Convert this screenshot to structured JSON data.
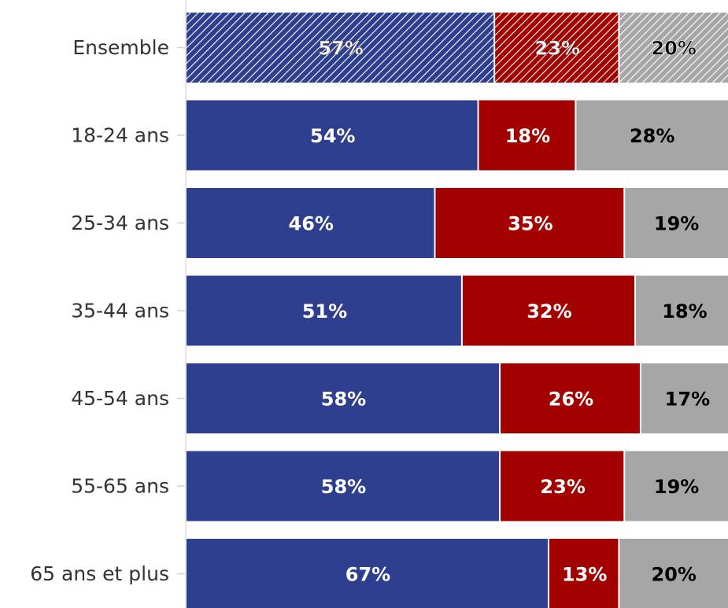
{
  "chart_data": {
    "type": "bar",
    "orientation": "horizontal",
    "stacked": true,
    "categories": [
      "Ensemble",
      "18-24 ans",
      "25-34 ans",
      "35-44 ans",
      "45-54 ans",
      "55-65 ans",
      "65 ans et plus"
    ],
    "series": [
      {
        "values": [
          57,
          54,
          46,
          51,
          58,
          58,
          67
        ],
        "labels": [
          "57%",
          "54%",
          "46%",
          "51%",
          "58%",
          "58%",
          "67%"
        ]
      },
      {
        "values": [
          23,
          18,
          35,
          32,
          26,
          23,
          13
        ],
        "labels": [
          "23%",
          "18%",
          "35%",
          "32%",
          "26%",
          "23%",
          "13%"
        ]
      },
      {
        "values": [
          20,
          28,
          19,
          18,
          17,
          19,
          20
        ],
        "labels": [
          "20%",
          "28%",
          "19%",
          "18%",
          "17%",
          "19%",
          "20%"
        ]
      }
    ],
    "highlighted_category": "Ensemble",
    "highlight_style": "hatched",
    "colors": [
      "#2f3f8f",
      "#a30000",
      "#a6a6a6"
    ],
    "label_colors": [
      "#ffffff",
      "#ffffff",
      "#000000"
    ],
    "xlim": [
      0,
      100
    ],
    "grid": false,
    "legend": "none"
  }
}
